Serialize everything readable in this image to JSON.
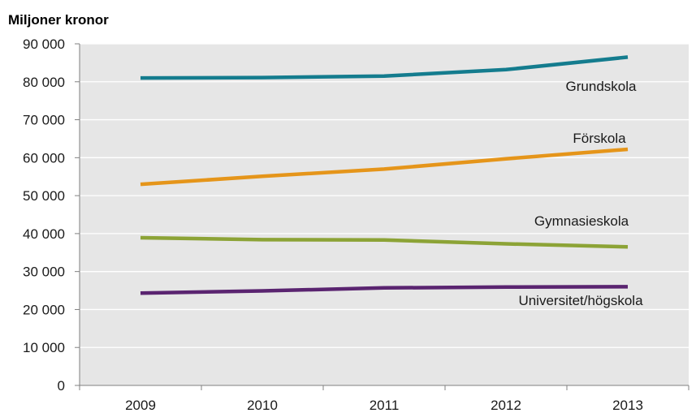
{
  "chart_data": {
    "type": "line",
    "unit_label": "Miljoner kronor",
    "categories": [
      "2009",
      "2010",
      "2011",
      "2012",
      "2013"
    ],
    "ylim": [
      0,
      90000
    ],
    "yticks": [
      0,
      10000,
      20000,
      30000,
      40000,
      50000,
      60000,
      70000,
      80000,
      90000
    ],
    "ytick_labels": [
      "0",
      "10 000",
      "20 000",
      "30 000",
      "40 000",
      "50 000",
      "60 000",
      "70 000",
      "80 000",
      "90 000"
    ],
    "grid": "horizontal",
    "plot_background": "#e6e6e6",
    "gridline_color": "#ffffff",
    "series": [
      {
        "name": "Grundskola",
        "color": "#147c8e",
        "values": [
          81000,
          81100,
          81500,
          83200,
          86500
        ]
      },
      {
        "name": "Förskola",
        "color": "#e5951a",
        "values": [
          53000,
          55100,
          57000,
          59700,
          62200
        ]
      },
      {
        "name": "Gymnasieskola",
        "color": "#8ca336",
        "values": [
          38900,
          38400,
          38300,
          37300,
          36500
        ]
      },
      {
        "name": "Universitet/högskola",
        "color": "#5a2470",
        "values": [
          24300,
          24900,
          25700,
          25900,
          26000
        ]
      }
    ]
  }
}
